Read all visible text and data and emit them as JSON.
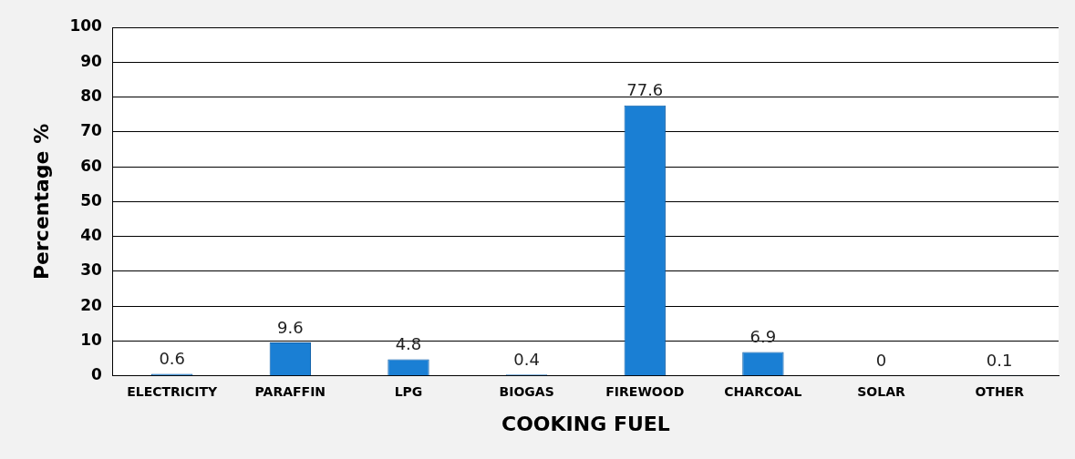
{
  "chart_data": {
    "type": "bar",
    "xlabel": "COOKING FUEL",
    "ylabel": "Percentage %",
    "categories": [
      "ELECTRICITY",
      "PARAFFIN",
      "LPG",
      "BIOGAS",
      "FIREWOOD",
      "CHARCOAL",
      "SOLAR",
      "OTHER"
    ],
    "values": [
      0.6,
      9.6,
      4.8,
      0.4,
      77.6,
      6.9,
      0,
      0.1
    ],
    "color": "#1a7fd4",
    "ylim": [
      0,
      100
    ],
    "yticks": [
      0,
      10,
      20,
      30,
      40,
      50,
      60,
      70,
      80,
      90,
      100
    ],
    "grid": "y",
    "data_labels": true
  }
}
